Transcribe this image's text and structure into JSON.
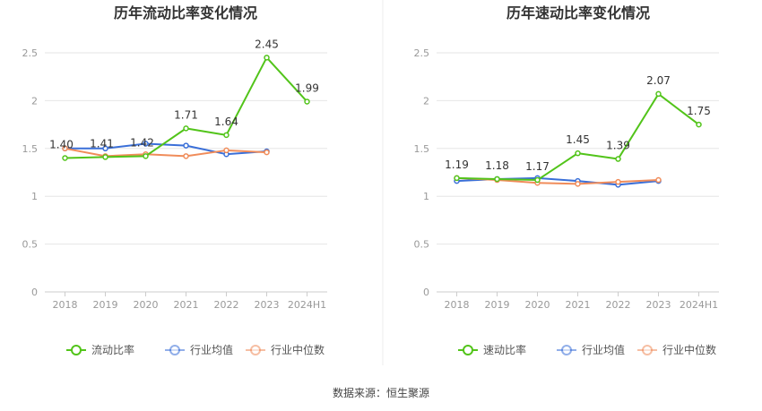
{
  "source_text": "数据来源：恒生聚源",
  "colors": {
    "company": "#52c41a",
    "industry_avg": "#3a6fd8",
    "industry_median": "#f08c5a",
    "axis_text": "#999999",
    "title": "#333333",
    "grid": "#e6e6e6"
  },
  "chart_data": [
    {
      "type": "line",
      "title": "历年流动比率变化情况",
      "xlabel": "",
      "ylabel": "",
      "categories": [
        "2018",
        "2019",
        "2020",
        "2021",
        "2022",
        "2023",
        "2024H1"
      ],
      "yticks": [
        "0",
        "0.5",
        "1",
        "1.5",
        "2",
        "2.5"
      ],
      "ylim": [
        0,
        2.5
      ],
      "grid": true,
      "legend_position": "bottom",
      "series": [
        {
          "name": "流动比率",
          "role": "company",
          "labeled": true,
          "values": [
            1.4,
            1.41,
            1.42,
            1.71,
            1.64,
            2.45,
            1.99
          ],
          "labels": [
            "1.40",
            "1.41",
            "1.42",
            "1.71",
            "1.64",
            "2.45",
            "1.99"
          ]
        },
        {
          "name": "行业均值",
          "role": "industry_avg",
          "labeled": false,
          "values": [
            1.5,
            1.5,
            1.55,
            1.53,
            1.44,
            1.47,
            null
          ]
        },
        {
          "name": "行业中位数",
          "role": "industry_median",
          "labeled": false,
          "values": [
            1.5,
            1.42,
            1.44,
            1.42,
            1.48,
            1.46,
            null
          ]
        }
      ]
    },
    {
      "type": "line",
      "title": "历年速动比率变化情况",
      "xlabel": "",
      "ylabel": "",
      "categories": [
        "2018",
        "2019",
        "2020",
        "2021",
        "2022",
        "2023",
        "2024H1"
      ],
      "yticks": [
        "0",
        "0.5",
        "1",
        "1.5",
        "2",
        "2.5"
      ],
      "ylim": [
        0,
        2.5
      ],
      "grid": true,
      "legend_position": "bottom",
      "series": [
        {
          "name": "速动比率",
          "role": "company",
          "labeled": true,
          "values": [
            1.19,
            1.18,
            1.17,
            1.45,
            1.39,
            2.07,
            1.75
          ],
          "labels": [
            "1.19",
            "1.18",
            "1.17",
            "1.45",
            "1.39",
            "2.07",
            "1.75"
          ]
        },
        {
          "name": "行业均值",
          "role": "industry_avg",
          "labeled": false,
          "values": [
            1.16,
            1.18,
            1.19,
            1.16,
            1.12,
            1.16,
            null
          ]
        },
        {
          "name": "行业中位数",
          "role": "industry_median",
          "labeled": false,
          "values": [
            1.19,
            1.17,
            1.14,
            1.13,
            1.15,
            1.17,
            null
          ]
        }
      ]
    }
  ]
}
